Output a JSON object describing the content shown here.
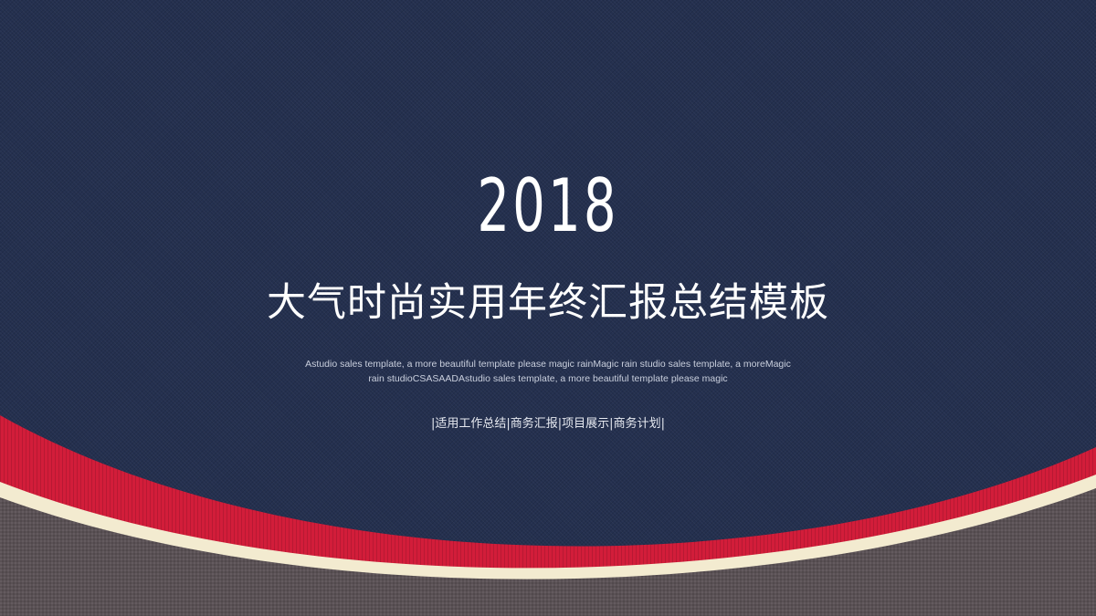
{
  "slide": {
    "year": "2018",
    "title": "大气时尚实用年终汇报总结模板",
    "description_line1": "Astudio sales template, a more beautiful template please magic rainMagic rain studio sales template, a moreMagic",
    "description_line2": "rain studioCSASAADAstudio sales template, a more beautiful template please magic",
    "tags": "|适用工作总结|商务汇报|项目展示|商务计划|"
  },
  "colors": {
    "navy_background": "#24304f",
    "red_band": "#d21d3a",
    "cream_stripe": "#f3ebd0",
    "taupe_bottom": "#5a5155",
    "text": "#ffffff"
  }
}
